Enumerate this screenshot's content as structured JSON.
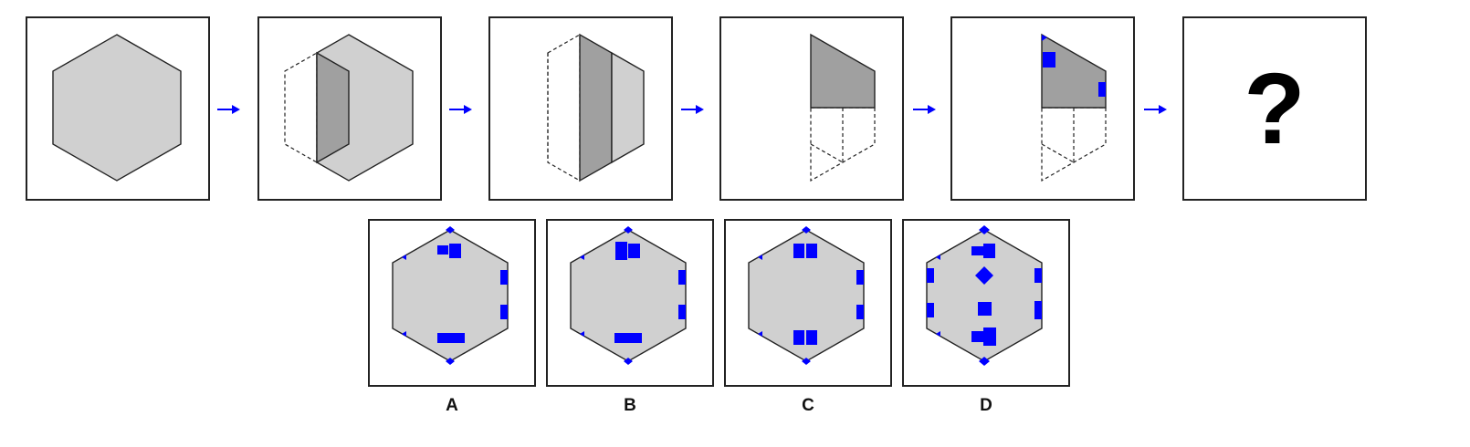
{
  "colors": {
    "light_fill": "#d0d0d0",
    "dark_fill": "#a0a0a0",
    "marker": "#0000ff",
    "arrow": "#0000ff",
    "stroke": "#222222"
  },
  "sequence": {
    "question_mark": "?"
  },
  "options": [
    {
      "label": "A"
    },
    {
      "label": "B"
    },
    {
      "label": "C"
    },
    {
      "label": "D"
    }
  ]
}
